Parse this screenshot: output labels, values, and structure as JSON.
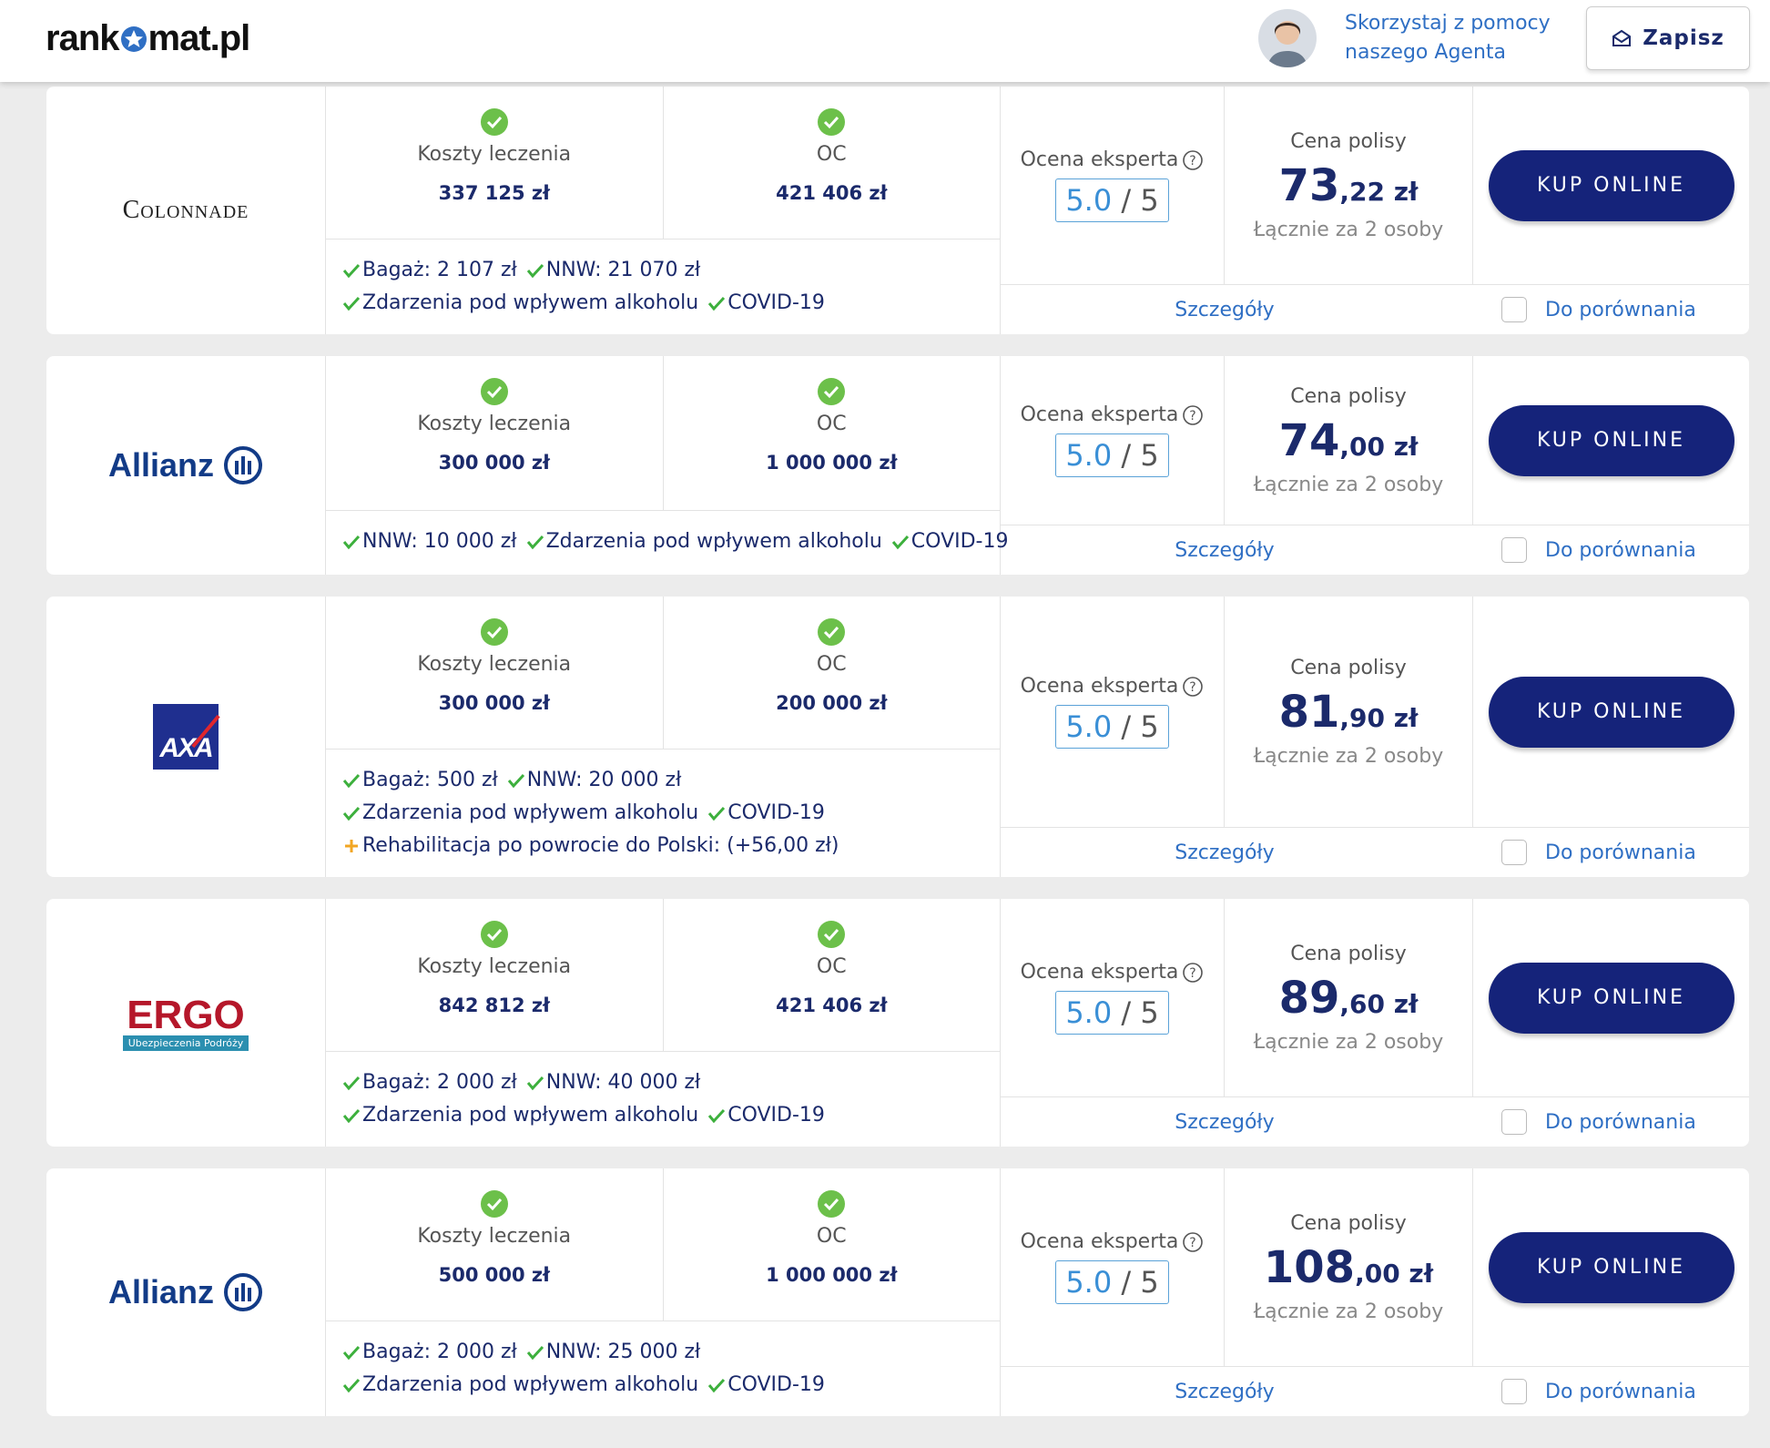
{
  "header": {
    "logo_left": "rank",
    "logo_right": "mat.pl",
    "agent_line1": "Skorzystaj z pomocy",
    "agent_line2": "naszego Agenta",
    "save_button": "Zapisz"
  },
  "offers": [
    {
      "logo": {
        "style": "colonnade",
        "text": "Colonnade"
      },
      "coverage": [
        {
          "label": "Koszty leczenia",
          "value": "337 125 zł"
        },
        {
          "label": "OC",
          "value": "421 406 zł"
        }
      ],
      "extras": [
        [
          {
            "icon": "check",
            "text": "Bagaż: 2 107 zł"
          },
          {
            "icon": "check",
            "text": "NNW: 21 070 zł"
          }
        ],
        [
          {
            "icon": "check",
            "text": "Zdarzenia pod wpływem alkoholu"
          },
          {
            "icon": "check",
            "text": "COVID-19"
          }
        ]
      ],
      "rating_label": "Ocena eksperta",
      "rating": "5.0",
      "rating_max": "/ 5",
      "price_label": "Cena polisy",
      "price_int": "73",
      "price_dec": ",22 zł",
      "price_note": "Łącznie za 2 osoby",
      "buy": "KUP ONLINE",
      "details": "Szczegóły",
      "compare": "Do porównania"
    },
    {
      "logo": {
        "style": "allianz",
        "text": "Allianz"
      },
      "coverage": [
        {
          "label": "Koszty leczenia",
          "value": "300 000 zł"
        },
        {
          "label": "OC",
          "value": "1 000 000 zł"
        }
      ],
      "extras": [
        [
          {
            "icon": "check",
            "text": "NNW: 10 000 zł"
          },
          {
            "icon": "check",
            "text": "Zdarzenia pod wpływem alkoholu"
          },
          {
            "icon": "check",
            "text": "COVID-19"
          }
        ]
      ],
      "rating_label": "Ocena eksperta",
      "rating": "5.0",
      "rating_max": "/ 5",
      "price_label": "Cena polisy",
      "price_int": "74",
      "price_dec": ",00 zł",
      "price_note": "Łącznie za 2 osoby",
      "buy": "KUP ONLINE",
      "details": "Szczegóły",
      "compare": "Do porównania"
    },
    {
      "logo": {
        "style": "axa",
        "text": "AXA"
      },
      "coverage": [
        {
          "label": "Koszty leczenia",
          "value": "300 000 zł"
        },
        {
          "label": "OC",
          "value": "200 000 zł"
        }
      ],
      "extras": [
        [
          {
            "icon": "check",
            "text": "Bagaż: 500 zł"
          },
          {
            "icon": "check",
            "text": "NNW: 20 000 zł"
          }
        ],
        [
          {
            "icon": "check",
            "text": "Zdarzenia pod wpływem alkoholu"
          },
          {
            "icon": "check",
            "text": "COVID-19"
          }
        ],
        [
          {
            "icon": "plus",
            "text": "Rehabilitacja po powrocie do Polski: (+56,00 zł)"
          }
        ]
      ],
      "rating_label": "Ocena eksperta",
      "rating": "5.0",
      "rating_max": "/ 5",
      "price_label": "Cena polisy",
      "price_int": "81",
      "price_dec": ",90 zł",
      "price_note": "Łącznie za 2 osoby",
      "buy": "KUP ONLINE",
      "details": "Szczegóły",
      "compare": "Do porównania"
    },
    {
      "logo": {
        "style": "ergo",
        "text": "ERGO",
        "sub": "Ubezpieczenia Podróży"
      },
      "coverage": [
        {
          "label": "Koszty leczenia",
          "value": "842 812 zł"
        },
        {
          "label": "OC",
          "value": "421 406 zł"
        }
      ],
      "extras": [
        [
          {
            "icon": "check",
            "text": "Bagaż: 2 000 zł"
          },
          {
            "icon": "check",
            "text": "NNW: 40 000 zł"
          }
        ],
        [
          {
            "icon": "check",
            "text": "Zdarzenia pod wpływem alkoholu"
          },
          {
            "icon": "check",
            "text": "COVID-19"
          }
        ]
      ],
      "rating_label": "Ocena eksperta",
      "rating": "5.0",
      "rating_max": "/ 5",
      "price_label": "Cena polisy",
      "price_int": "89",
      "price_dec": ",60 zł",
      "price_note": "Łącznie za 2 osoby",
      "buy": "KUP ONLINE",
      "details": "Szczegóły",
      "compare": "Do porównania"
    },
    {
      "logo": {
        "style": "allianz",
        "text": "Allianz"
      },
      "coverage": [
        {
          "label": "Koszty leczenia",
          "value": "500 000 zł"
        },
        {
          "label": "OC",
          "value": "1 000 000 zł"
        }
      ],
      "extras": [
        [
          {
            "icon": "check",
            "text": "Bagaż: 2 000 zł"
          },
          {
            "icon": "check",
            "text": "NNW: 25 000 zł"
          }
        ],
        [
          {
            "icon": "check",
            "text": "Zdarzenia pod wpływem alkoholu"
          },
          {
            "icon": "check",
            "text": "COVID-19"
          }
        ]
      ],
      "rating_label": "Ocena eksperta",
      "rating": "5.0",
      "rating_max": "/ 5",
      "price_label": "Cena polisy",
      "price_int": "108",
      "price_dec": ",00 zł",
      "price_note": "Łącznie za 2 osoby",
      "buy": "KUP ONLINE",
      "details": "Szczegóły",
      "compare": "Do porównania"
    }
  ]
}
